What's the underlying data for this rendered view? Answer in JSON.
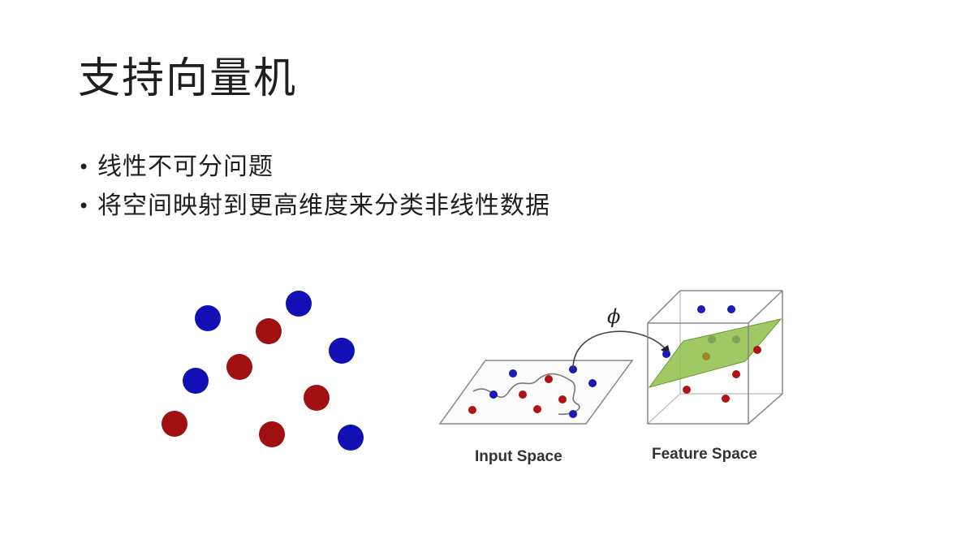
{
  "slide": {
    "title": "支持向量机",
    "bullets": [
      "线性不可分问题",
      "将空间映射到更高维度来分类非线性数据"
    ]
  },
  "figure": {
    "input_space_label": "Input Space",
    "feature_space_label": "Feature Space",
    "mapping_symbol": "ϕ",
    "colors": {
      "class_a": "#1010b4",
      "class_b": "#a01010",
      "hyperplane": "#8ebf4a",
      "lines": "#888888"
    }
  }
}
